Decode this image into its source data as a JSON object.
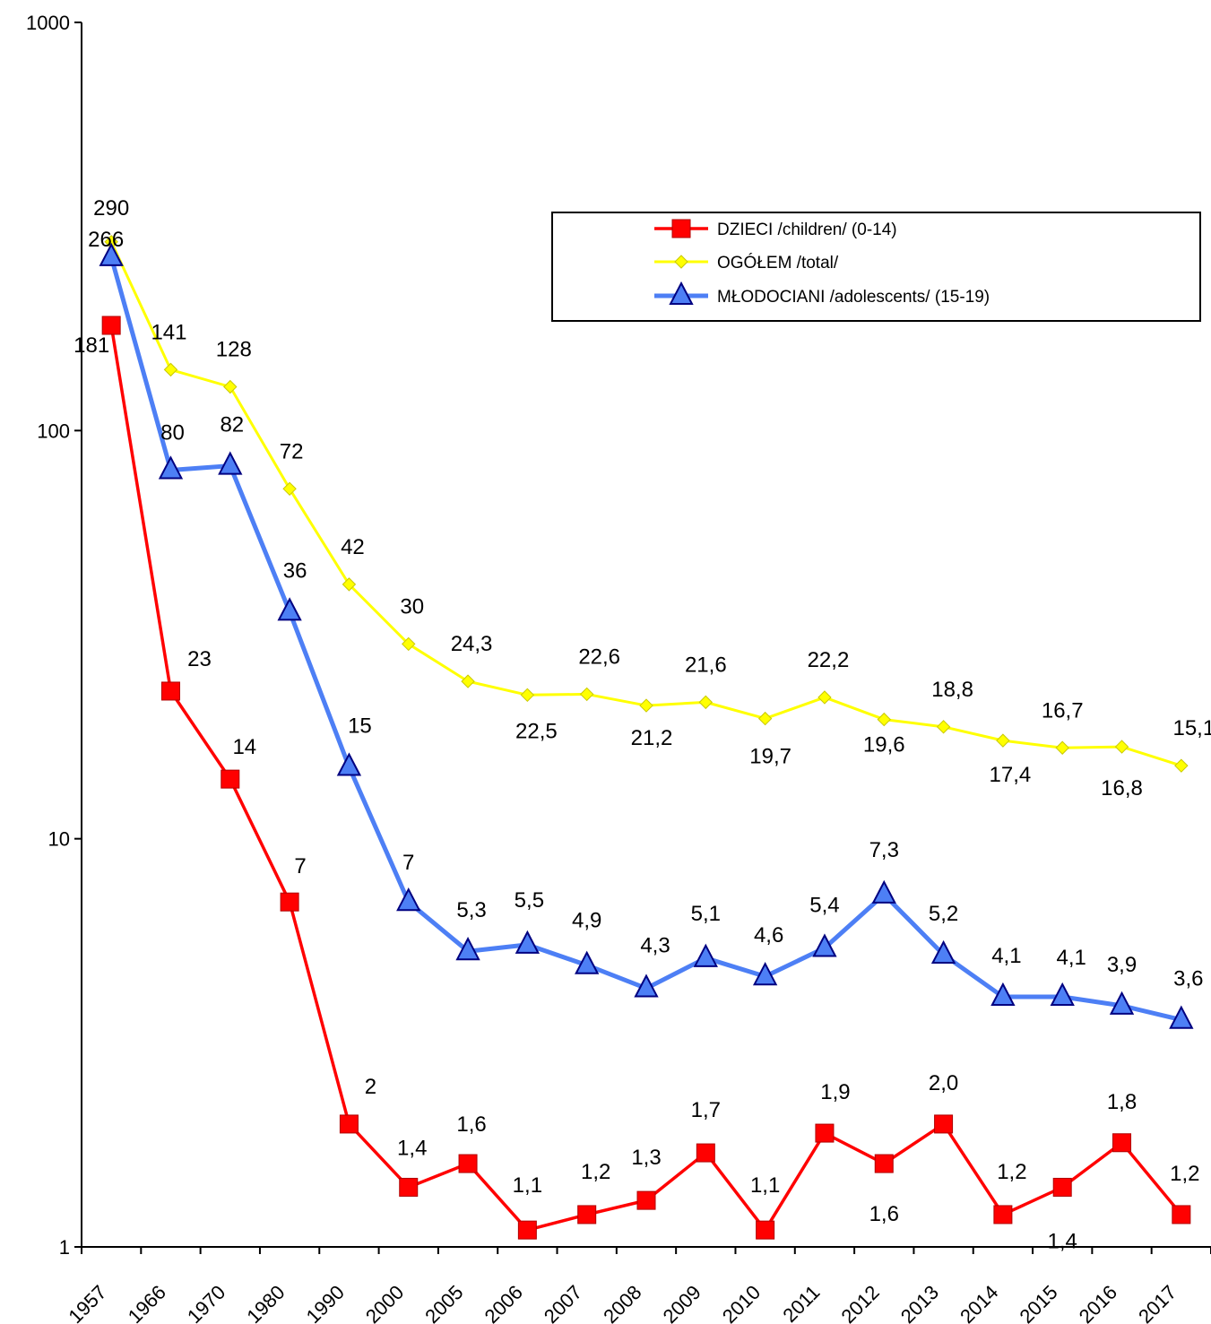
{
  "chart_data": {
    "type": "line",
    "y_scale": "log",
    "ylim": [
      1,
      1000
    ],
    "y_ticks": [
      "1",
      "10",
      "100",
      "1000"
    ],
    "categories": [
      "1957",
      "1966",
      "1970",
      "1980",
      "1990",
      "2000",
      "2005",
      "2006",
      "2007",
      "2008",
      "2009",
      "2010",
      "2011",
      "2012",
      "2013",
      "2014",
      "2015",
      "2016",
      "2017"
    ],
    "grid": false,
    "legend_position": "top-right",
    "series": [
      {
        "name": "DZIECI /children/ (0-14)",
        "color": "#ff0000",
        "marker": "square",
        "values": [
          181,
          23,
          14,
          7,
          2,
          1.4,
          1.6,
          1.1,
          1.2,
          1.3,
          1.7,
          1.1,
          1.9,
          1.6,
          2.0,
          1.2,
          1.4,
          1.8,
          1.2
        ],
        "labels": [
          "181",
          "23",
          "14",
          "7",
          "2",
          "1,4",
          "1,6",
          "1,1",
          "1,2",
          "1,3",
          "1,7",
          "1,1",
          "1,9",
          "1,6",
          "2,0",
          "1,2",
          "1,4",
          "1,8",
          "1,2"
        ]
      },
      {
        "name": "OGÓŁEM /total/",
        "color": "#ffff00",
        "marker": "diamond",
        "values": [
          290,
          141,
          128,
          72,
          42,
          30,
          24.3,
          22.5,
          22.6,
          21.2,
          21.6,
          19.7,
          22.2,
          19.6,
          18.8,
          17.4,
          16.7,
          16.8,
          15.1
        ],
        "labels": [
          "290",
          "141",
          "128",
          "72",
          "42",
          "30",
          "24,3",
          "22,5",
          "22,6",
          "21,2",
          "21,6",
          "19,7",
          "22,2",
          "19,6",
          "18,8",
          "17,4",
          "16,7",
          "16,8",
          "15,1"
        ]
      },
      {
        "name": "MŁODOCIANI /adolescents/ (15-19)",
        "color": "#4d7ff5",
        "marker": "triangle",
        "values": [
          266,
          80,
          82,
          36,
          15,
          7,
          5.3,
          5.5,
          4.9,
          4.3,
          5.1,
          4.6,
          5.4,
          7.3,
          5.2,
          4.1,
          4.1,
          3.9,
          3.6
        ],
        "labels": [
          "266",
          "80",
          "82",
          "36",
          "15",
          "7",
          "5,3",
          "5,5",
          "4,9",
          "4,3",
          "5,1",
          "4,6",
          "5,4",
          "7,3",
          "5,2",
          "4,1",
          "4,1",
          "3,9",
          "3,6"
        ]
      }
    ]
  }
}
